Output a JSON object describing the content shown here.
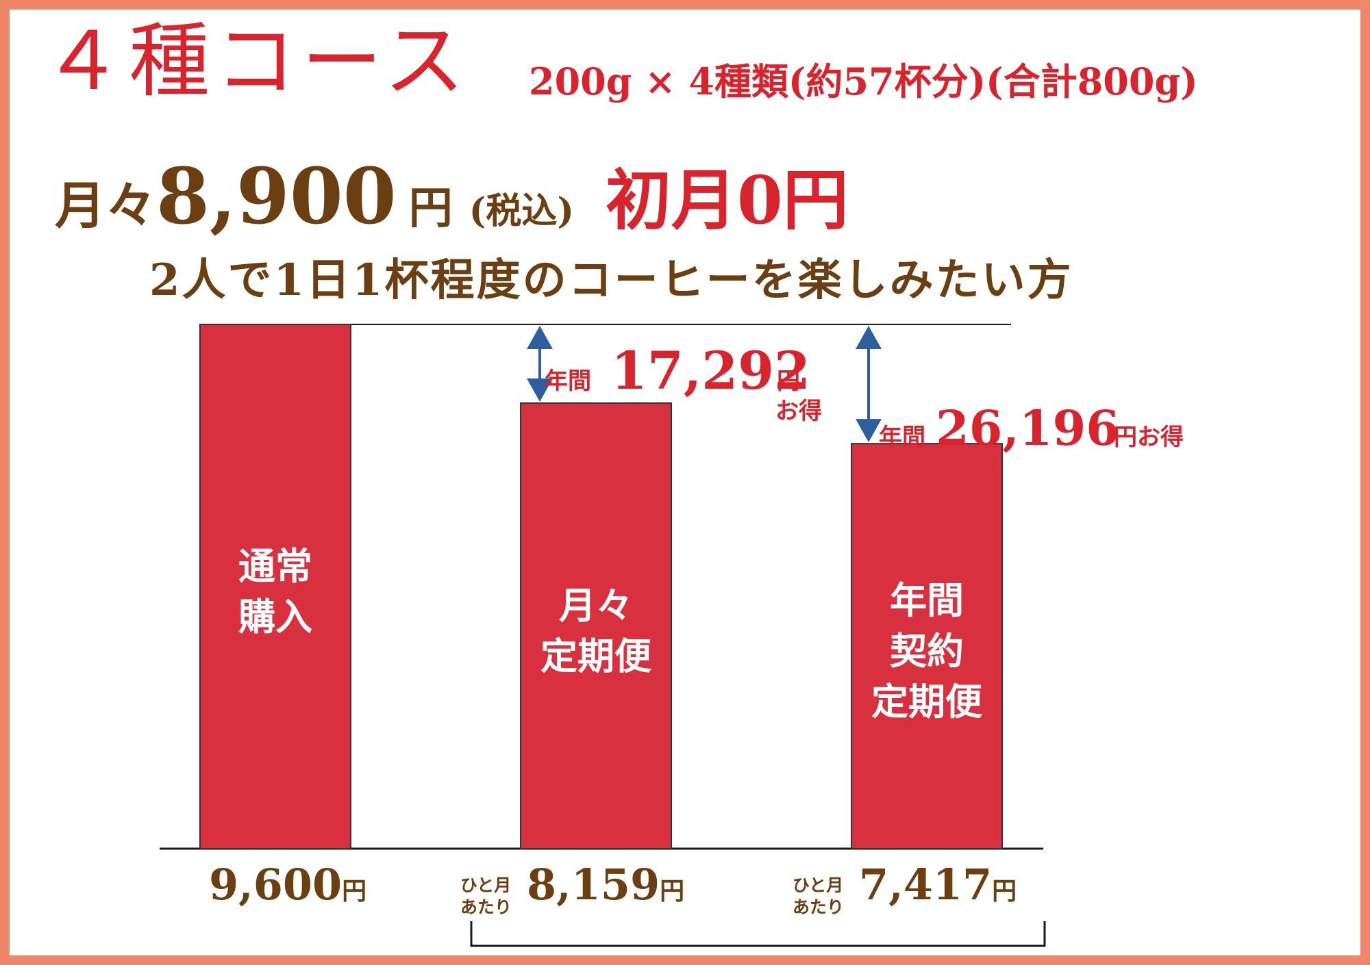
{
  "header": {
    "title": "４種コース",
    "spec": "200g × 4種類(約57杯分)(合計800g)",
    "price_monthly_prefix": "月々",
    "price_monthly_value": "8,900",
    "price_monthly_unit": "円",
    "tax_note": "(税込)",
    "first_month": "初月0円",
    "target_audience": "2人で1日1杯程度のコーヒーを楽しみたい方"
  },
  "chart_data": {
    "type": "bar",
    "categories": [
      "通常購入",
      "月々定期便",
      "年間契約定期便"
    ],
    "bar_labels": [
      [
        "通常",
        "購入"
      ],
      [
        "月々",
        "定期便"
      ],
      [
        "年間",
        "契約",
        "定期便"
      ]
    ],
    "values": [
      9600,
      8159,
      7417
    ],
    "value_labels": [
      "9,600",
      "8,159",
      "7,417"
    ],
    "unit": "円",
    "value_prefix": [
      "",
      "ひと月あたり",
      "ひと月あたり"
    ],
    "value_prefix_lines": [
      "ひと月",
      "あたり"
    ],
    "bar_color": "#d8303f",
    "arrow_color": "#2f5ea0",
    "annotations": [
      {
        "prefix": "年間",
        "amount": "17,292",
        "unit": "円",
        "suffix": "お得",
        "from": 9600,
        "to": 8159
      },
      {
        "prefix": "年間",
        "amount": "26,196",
        "unit": "円",
        "suffix": "お得",
        "from": 9600,
        "to": 7417
      }
    ]
  },
  "colors": {
    "frame": "#f0876a",
    "accent_red": "#d8242d",
    "text_brown": "#6b3f12"
  }
}
